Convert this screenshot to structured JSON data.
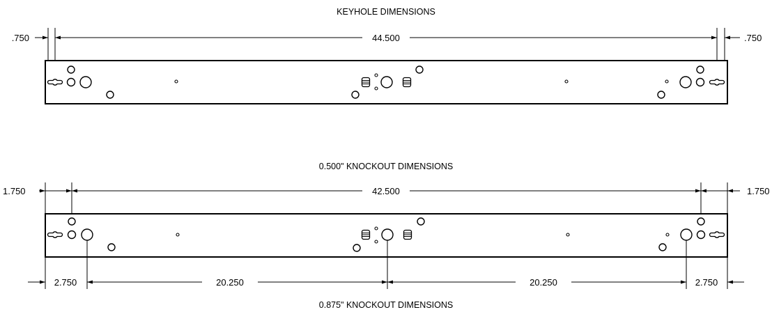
{
  "views": [
    {
      "title": "KEYHOLE DIMENSIONS",
      "dims": {
        "left": ".750",
        "center": "44.500",
        "right": ".750"
      }
    },
    {
      "title": "0.500\" KNOCKOUT DIMENSIONS",
      "dims": {
        "left": "1.750",
        "center": "42.500",
        "right": "1.750"
      }
    },
    {
      "title": "0.875\" KNOCKOUT DIMENSIONS",
      "dims": {
        "a": "2.750",
        "b": "20.250",
        "c": "20.250",
        "d": "2.750"
      }
    }
  ]
}
